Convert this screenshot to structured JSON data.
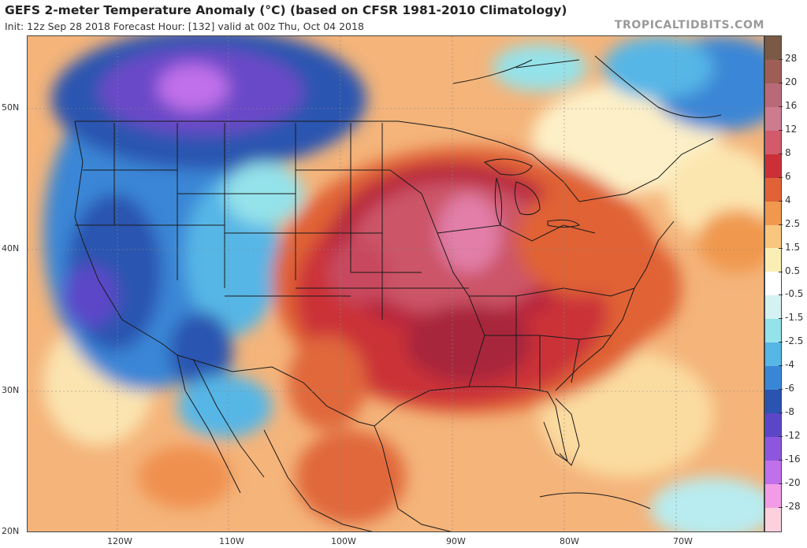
{
  "header": {
    "title": "GEFS 2-meter Temperature Anomaly (°C) (based on CFSR 1981-2010 Climatology)",
    "subtitle": "Init: 12z Sep 28 2018   Forecast Hour: [132]   valid at 00z Thu, Oct 04 2018",
    "brand": "TROPICALTIDBITS.COM"
  },
  "axes": {
    "lat_labels": [
      "50N",
      "40N",
      "30N",
      "20N"
    ],
    "lon_labels": [
      "120W",
      "110W",
      "100W",
      "90W",
      "80W",
      "70W"
    ]
  },
  "colorbar": {
    "labels": [
      "28",
      "20",
      "16",
      "12",
      "8",
      "6",
      "4",
      "2.5",
      "1.5",
      "0.5",
      "-0.5",
      "-1.5",
      "-2.5",
      "-4",
      "-6",
      "-8",
      "-12",
      "-16",
      "-20",
      "-28"
    ],
    "colors": [
      "#7a5a44",
      "#9e5e56",
      "#b96a78",
      "#cc7c8e",
      "#d25a6a",
      "#cb3038",
      "#e06236",
      "#f0984e",
      "#f8c67e",
      "#fbeeb4",
      "#ffffff",
      "#d4f2f2",
      "#94e2ea",
      "#56b6e6",
      "#3a86d6",
      "#2a54b0",
      "#5c46c8",
      "#8e56dc",
      "#c070ea",
      "#f29ce8",
      "#fcd0dc"
    ],
    "legend_colors": {
      "warm_max": "#b94a6e",
      "warm": "#d7363c",
      "mild": "#f2a058",
      "neutral": "#ffffff",
      "cool": "#58b4e4",
      "cold": "#2c5cb8",
      "very_cold": "#8a5ad8"
    }
  }
}
